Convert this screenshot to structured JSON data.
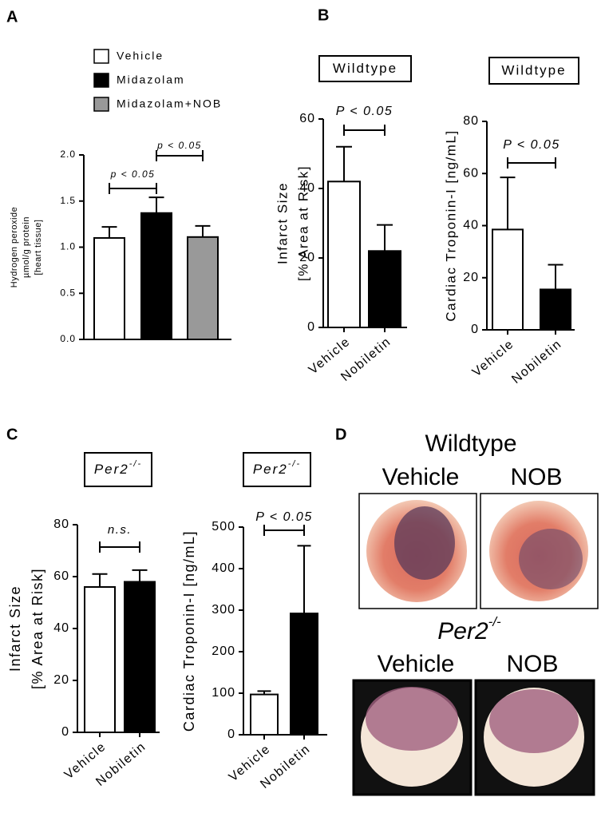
{
  "panel_labels": [
    "A",
    "B",
    "C",
    "D"
  ],
  "chart_data": [
    {
      "type": "bar",
      "ylabel": [
        "Hydrogen peroxide",
        "µmol/g protein",
        "[heart tissue]"
      ],
      "series": [
        {
          "name": "Vehicle",
          "color": "#ffffff",
          "values": [
            1.1
          ],
          "errors": [
            0.12
          ]
        },
        {
          "name": "Midazolam",
          "color": "#000000",
          "values": [
            1.37
          ],
          "errors": [
            0.17
          ]
        },
        {
          "name": "Midazolam+NOB",
          "color": "#999999",
          "values": [
            1.11
          ],
          "errors": [
            0.12
          ]
        }
      ],
      "ylim": [
        0,
        2
      ],
      "yticks": [
        {
          "value": 0,
          "label": "0.0"
        },
        {
          "value": 0.5,
          "label": "0.5"
        },
        {
          "value": 1,
          "label": "1.0"
        },
        {
          "value": 1.5,
          "label": "1.5"
        },
        {
          "value": 2,
          "label": "2.0"
        }
      ],
      "annotations": [
        "p < 0.05",
        "p < 0.05"
      ]
    },
    {
      "type": "bar",
      "title": "Wildtype",
      "ylabel": [
        "Infarct Size",
        "[% Area at Risk]"
      ],
      "categories": [
        "Vehicle",
        "Nobiletin"
      ],
      "values": [
        42,
        22
      ],
      "errors": [
        10,
        7.5
      ],
      "colors": [
        "#ffffff",
        "#000000"
      ],
      "ylim": [
        0,
        60
      ],
      "yticks": [
        0,
        20,
        40,
        60
      ],
      "annotations": [
        "P < 0.05"
      ]
    },
    {
      "type": "bar",
      "title": "Wildtype",
      "ylabel": [
        "Cardiac Troponin-I [ng/mL]"
      ],
      "categories": [
        "Vehicle",
        "Nobiletin"
      ],
      "values": [
        38.5,
        15.5
      ],
      "errors": [
        20,
        9.5
      ],
      "colors": [
        "#ffffff",
        "#000000"
      ],
      "ylim": [
        0,
        80
      ],
      "yticks": [
        0,
        20,
        40,
        60,
        80
      ],
      "annotations": [
        "P < 0.05"
      ]
    },
    {
      "type": "bar",
      "title": "Per2",
      "title_sup": "-/-",
      "ylabel": [
        "Infarct Size",
        "[% Area at Risk]"
      ],
      "categories": [
        "Vehicle",
        "Nobiletin"
      ],
      "values": [
        56,
        58
      ],
      "errors": [
        5,
        4.5
      ],
      "colors": [
        "#ffffff",
        "#000000"
      ],
      "ylim": [
        0,
        80
      ],
      "yticks": [
        0,
        20,
        40,
        60,
        80
      ],
      "annotations": [
        "n.s."
      ]
    },
    {
      "type": "bar",
      "title": "Per2",
      "title_sup": "-/-",
      "ylabel": [
        "Cardiac Troponin-I [ng/mL]"
      ],
      "categories": [
        "Vehicle",
        "Nobiletin"
      ],
      "values": [
        97,
        292
      ],
      "errors": [
        8,
        163
      ],
      "colors": [
        "#ffffff",
        "#000000"
      ],
      "ylim": [
        0,
        500
      ],
      "yticks": [
        0,
        100,
        200,
        300,
        400,
        500
      ],
      "annotations": [
        "P < 0.05"
      ]
    }
  ],
  "panel_d": {
    "group1": "Wildtype",
    "group2": "Per2",
    "group2_sup": "-/-",
    "labels": [
      "Vehicle",
      "NOB",
      "Vehicle",
      "NOB"
    ]
  }
}
